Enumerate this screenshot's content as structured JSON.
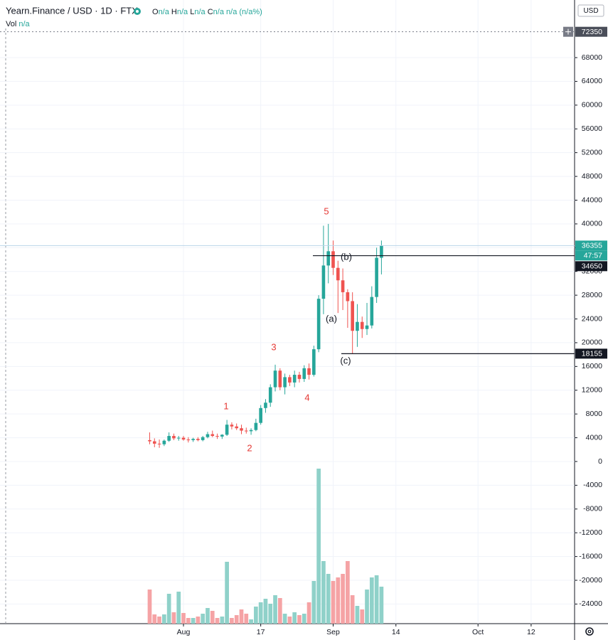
{
  "chart_data": {
    "type": "candlestick",
    "title": "Yearn.Finance / USD · 1D · FTX",
    "legend_values": [
      {
        "label": "O",
        "value": "n/a"
      },
      {
        "label": "H",
        "value": "n/a"
      },
      {
        "label": "L",
        "value": "n/a"
      },
      {
        "label": "C",
        "value": "n/a"
      }
    ],
    "change": "n/a (n/a%)",
    "volume_label": "Vol",
    "volume_value": "n/a",
    "currency": "USD",
    "x": [
      "07-25",
      "07-26",
      "07-27",
      "07-28",
      "07-29",
      "07-30",
      "07-31",
      "08-01",
      "08-02",
      "08-03",
      "08-04",
      "08-05",
      "08-06",
      "08-07",
      "08-08",
      "08-09",
      "08-10",
      "08-11",
      "08-12",
      "08-13",
      "08-14",
      "08-15",
      "08-16",
      "08-17",
      "08-18",
      "08-19",
      "08-20",
      "08-21",
      "08-22",
      "08-23",
      "08-24",
      "08-25",
      "08-26",
      "08-27",
      "08-28",
      "08-29",
      "08-30",
      "08-31",
      "09-01",
      "09-02",
      "09-03",
      "09-04",
      "09-05",
      "09-06",
      "09-07",
      "09-08",
      "09-09",
      "09-10",
      "09-11"
    ],
    "open": [
      3600,
      3400,
      3000,
      2900,
      3500,
      4300,
      3900,
      4000,
      3700,
      3600,
      3800,
      3600,
      4100,
      4600,
      4300,
      4200,
      4500,
      6200,
      5900,
      5600,
      5200,
      5100,
      5300,
      6500,
      9000,
      9900,
      12500,
      15300,
      12500,
      14200,
      13300,
      14600,
      13900,
      15700,
      14600,
      18900,
      27400,
      33000,
      35400,
      32600,
      30500,
      28500,
      27000,
      22000,
      23500,
      22300,
      22900,
      27700,
      34300
    ],
    "high": [
      4900,
      3900,
      3700,
      3700,
      4900,
      4700,
      4300,
      4300,
      4100,
      4000,
      4100,
      4300,
      5000,
      5200,
      4700,
      4600,
      7000,
      6600,
      6400,
      6200,
      5700,
      5600,
      7200,
      9500,
      10500,
      13000,
      16300,
      15700,
      14800,
      14600,
      15300,
      15100,
      16200,
      16500,
      19500,
      28000,
      39700,
      40000,
      37200,
      33800,
      32500,
      29000,
      28500,
      26500,
      24400,
      26700,
      29500,
      36000,
      37200
    ],
    "low": [
      2900,
      2400,
      2300,
      2600,
      3300,
      3600,
      3500,
      3500,
      3200,
      3300,
      3400,
      3400,
      3900,
      4100,
      3800,
      3800,
      4300,
      5400,
      5300,
      4600,
      4700,
      4500,
      5100,
      6200,
      8200,
      9200,
      11800,
      12000,
      11300,
      12700,
      12500,
      13300,
      13400,
      13800,
      14300,
      18400,
      24800,
      30000,
      31400,
      25000,
      25500,
      22500,
      18200,
      19300,
      20800,
      21300,
      22400,
      26700,
      31500
    ],
    "close": [
      3400,
      3000,
      2900,
      3500,
      4300,
      3900,
      4000,
      3700,
      3600,
      3800,
      3600,
      4100,
      4600,
      4300,
      4200,
      4500,
      6200,
      5900,
      5600,
      5200,
      5100,
      5300,
      6500,
      9000,
      9900,
      12500,
      15300,
      12500,
      14200,
      13300,
      14600,
      13900,
      15700,
      14600,
      18900,
      27400,
      33000,
      35400,
      32600,
      30500,
      28500,
      27000,
      22000,
      23500,
      22300,
      22900,
      27700,
      34300,
      36355
    ],
    "volume": [
      48,
      13,
      10,
      13,
      42,
      16,
      45,
      15,
      8,
      8,
      10,
      14,
      22,
      18,
      8,
      10,
      87,
      8,
      12,
      20,
      14,
      6,
      24,
      30,
      35,
      28,
      40,
      36,
      14,
      10,
      16,
      12,
      14,
      30,
      60,
      218,
      88,
      70,
      60,
      65,
      70,
      88,
      40,
      25,
      20,
      48,
      65,
      68,
      52
    ],
    "volume_lim": [
      0,
      240
    ],
    "up_color": "#26a69a",
    "down_color": "#ef5350",
    "volume_up_color": "#8fd1c9",
    "volume_down_color": "#f5a3a5",
    "xlim": [
      "06-24",
      "10-21"
    ],
    "xticks": [
      {
        "value": "08-01",
        "label": "Aug"
      },
      {
        "value": "08-17",
        "label": "17"
      },
      {
        "value": "09-01",
        "label": "Sep"
      },
      {
        "value": "09-14",
        "label": "14"
      },
      {
        "value": "10-01",
        "label": "Oct"
      },
      {
        "value": "10-12",
        "label": "12"
      }
    ],
    "ylim": [
      -27300,
      77700
    ],
    "yticks": [
      -24000,
      -20000,
      -16000,
      -12000,
      -8000,
      -4000,
      0,
      4000,
      8000,
      12000,
      16000,
      20000,
      24000,
      28000,
      32000,
      36000,
      40000,
      44000,
      48000,
      52000,
      56000,
      60000,
      64000,
      68000
    ],
    "grid": true,
    "alert_level": 72350,
    "last_price": 36355,
    "countdown": "47:57",
    "hlines": [
      34650,
      18155
    ],
    "annotations": [
      {
        "text": "1",
        "color": "#e53935"
      },
      {
        "text": "2",
        "color": "#e53935"
      },
      {
        "text": "3",
        "color": "#e53935"
      },
      {
        "text": "4",
        "color": "#e53935"
      },
      {
        "text": "5",
        "color": "#e53935"
      },
      {
        "text": "(a)",
        "color": "#131722"
      },
      {
        "text": "(b)",
        "color": "#131722"
      },
      {
        "text": "(c)",
        "color": "#131722"
      }
    ]
  }
}
